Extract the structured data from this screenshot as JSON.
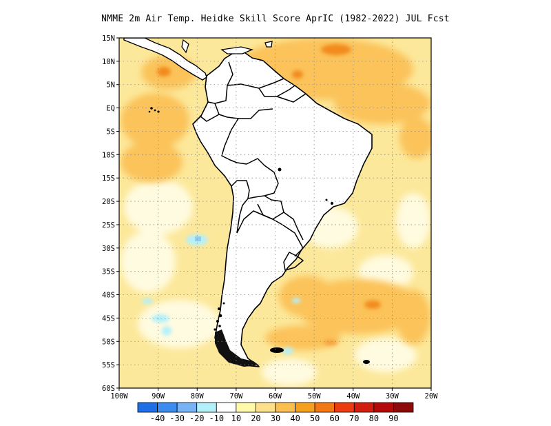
{
  "title": "NMME  2m Air Temp. Heidke Skill Score AprIC (1982-2022) JUL Fcst",
  "map": {
    "lat_labels": [
      "15N",
      "10N",
      "5N",
      "EQ",
      "5S",
      "10S",
      "15S",
      "20S",
      "25S",
      "30S",
      "35S",
      "40S",
      "45S",
      "50S",
      "55S",
      "60S"
    ],
    "lon_labels": [
      "100W",
      "90W",
      "80W",
      "70W",
      "60W",
      "50W",
      "40W",
      "30W",
      "20W"
    ],
    "lat_range": [
      -60,
      15
    ],
    "lon_range": [
      -100,
      -20
    ],
    "grid": "dotted",
    "colors": {
      "ocean_base": "#fce89a",
      "land_base": "#ffffff",
      "coast": "#000000"
    }
  },
  "colorbar": {
    "labels": [
      "-40",
      "-30",
      "-20",
      "-10",
      "10",
      "20",
      "30",
      "40",
      "50",
      "60",
      "70",
      "80",
      "90"
    ],
    "colors": [
      "#1e6fe6",
      "#3c8cf0",
      "#78b4f5",
      "#b4f0fa",
      "#ffffff",
      "#fffaaa",
      "#fce08c",
      "#fbbf50",
      "#f5a01e",
      "#f27814",
      "#eb3c0f",
      "#d21e0f",
      "#b40a0a",
      "#8c0a0a"
    ]
  }
}
